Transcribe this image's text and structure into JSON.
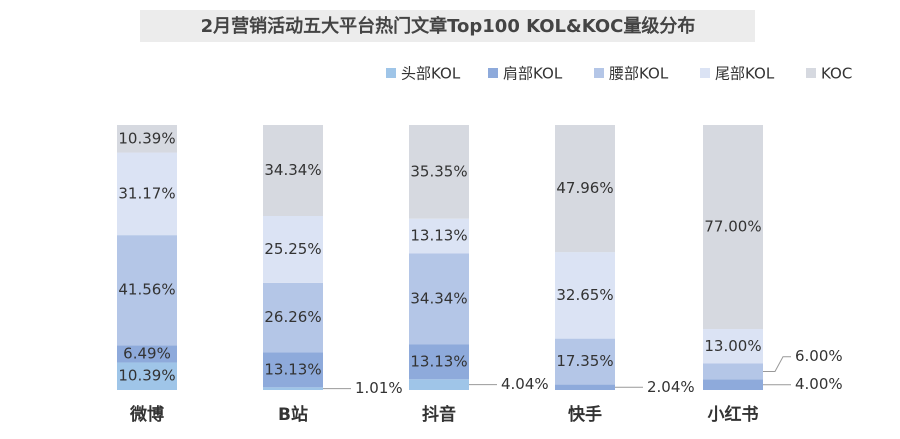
{
  "chart_data": {
    "type": "stacked_bar_100",
    "title": "2月营销活动五大平台热门文章Top100  KOL&KOC量级分布",
    "categories": [
      "微博",
      "B站",
      "抖音",
      "快手",
      "小红书"
    ],
    "series": [
      {
        "name": "头部KOL",
        "color": "#9fc5e8",
        "values": [
          10.39,
          1.01,
          4.04,
          null,
          null
        ],
        "value_labels": [
          "10.39%",
          "1.01%",
          "4.04%",
          null,
          null
        ]
      },
      {
        "name": "肩部KOL",
        "color": "#8eaadb",
        "values": [
          6.49,
          13.13,
          13.13,
          2.04,
          4.0
        ],
        "value_labels": [
          "6.49%",
          "13.13%",
          "13.13%",
          "2.04%",
          "4.00%"
        ]
      },
      {
        "name": "腰部KOL",
        "color": "#b4c6e7",
        "values": [
          41.56,
          26.26,
          34.34,
          17.35,
          6.0
        ],
        "value_labels": [
          "41.56%",
          "26.26%",
          "34.34%",
          "17.35%",
          "6.00%"
        ]
      },
      {
        "name": "尾部KOL",
        "color": "#dbe3f4",
        "values": [
          31.17,
          25.25,
          13.13,
          32.65,
          13.0
        ],
        "value_labels": [
          "31.17%",
          "25.25%",
          "13.13%",
          "32.65%",
          "13.00%"
        ]
      },
      {
        "name": "KOC",
        "color": "#d6d9e0",
        "values": [
          10.39,
          34.34,
          35.35,
          47.96,
          77.0
        ],
        "value_labels": [
          "10.39%",
          "34.34%",
          "35.35%",
          "47.96%",
          "77.00%"
        ]
      }
    ],
    "legend": "top-right"
  }
}
